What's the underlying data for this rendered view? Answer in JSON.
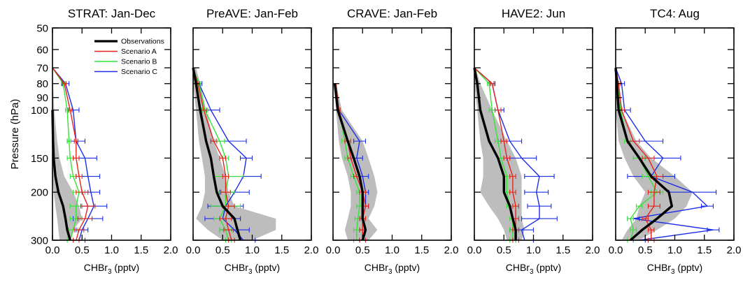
{
  "figure": {
    "ylabel": "Pressure (hPa)",
    "yticks": [
      "50",
      "60",
      "70",
      "80",
      "90",
      "100",
      "150",
      "200",
      "300"
    ],
    "ytick_values": [
      50,
      60,
      70,
      80,
      90,
      100,
      150,
      200,
      300
    ],
    "xticks": [
      "0.0",
      "0.5",
      "1.0",
      "1.5",
      "2.0"
    ],
    "xtick_values": [
      0,
      0.5,
      1.0,
      1.5,
      2.0
    ],
    "xlabel_main": "CHBr",
    "xlabel_sub": "3",
    "xlabel_unit": " (pptv)",
    "legend": [
      {
        "name": "Observations",
        "color": "#000000"
      },
      {
        "name": "Scenario A",
        "color": "#e8231c"
      },
      {
        "name": "Scenario B",
        "color": "#33e433"
      },
      {
        "name": "Scenario C",
        "color": "#1c2ee8"
      }
    ]
  },
  "chart_data": [
    {
      "type": "line",
      "title": "STRAT: Jan-Dec",
      "xlim": [
        0,
        2
      ],
      "ylim": [
        50,
        300
      ],
      "y_scale": "log",
      "y_inverted": true,
      "band": [
        {
          "p": 70,
          "lo": 0.0,
          "hi": 0.0
        },
        {
          "p": 100,
          "lo": 0.0,
          "hi": 0.03
        },
        {
          "p": 130,
          "lo": 0.0,
          "hi": 0.08
        },
        {
          "p": 150,
          "lo": 0.0,
          "hi": 0.12
        },
        {
          "p": 175,
          "lo": 0.0,
          "hi": 0.2
        },
        {
          "p": 200,
          "lo": 0.02,
          "hi": 0.35
        },
        {
          "p": 225,
          "lo": 0.05,
          "hi": 0.45
        },
        {
          "p": 250,
          "lo": 0.08,
          "hi": 0.5
        },
        {
          "p": 275,
          "lo": 0.1,
          "hi": 0.35
        },
        {
          "p": 300,
          "lo": 0.12,
          "hi": 0.3
        }
      ],
      "series": [
        {
          "name": "Observations",
          "p": [
            100,
            130,
            150,
            175,
            200,
            225,
            250,
            275,
            300
          ],
          "x": [
            0.0,
            0.01,
            0.02,
            0.05,
            0.1,
            0.18,
            0.22,
            0.25,
            0.3
          ]
        },
        {
          "name": "Scenario A",
          "p": [
            70,
            80,
            100,
            130,
            150,
            175,
            200,
            225,
            250,
            275,
            300
          ],
          "x": [
            0.0,
            0.2,
            0.3,
            0.4,
            0.4,
            0.45,
            0.5,
            0.6,
            0.55,
            0.45,
            0.4
          ],
          "err": [
            0,
            0.03,
            0.03,
            0.03,
            0.05,
            0.05,
            0.1,
            0.12,
            0.12,
            0.08,
            0.05
          ]
        },
        {
          "name": "Scenario B",
          "p": [
            70,
            80,
            100,
            130,
            150,
            175,
            200,
            225,
            250,
            275,
            300
          ],
          "x": [
            0.0,
            0.18,
            0.25,
            0.28,
            0.3,
            0.35,
            0.45,
            0.4,
            0.4,
            0.35,
            0.3
          ],
          "err": [
            0,
            0.03,
            0.03,
            0.03,
            0.05,
            0.05,
            0.1,
            0.1,
            0.1,
            0.08,
            0.05
          ]
        },
        {
          "name": "Scenario C",
          "p": [
            70,
            80,
            100,
            130,
            150,
            175,
            200,
            225,
            250,
            275,
            300
          ],
          "x": [
            0.0,
            0.22,
            0.35,
            0.4,
            0.55,
            0.6,
            0.65,
            0.7,
            0.6,
            0.5,
            0.45
          ],
          "err": [
            0,
            0.06,
            0.1,
            0.15,
            0.2,
            0.2,
            0.15,
            0.22,
            0.25,
            0.1,
            0.1
          ]
        }
      ]
    },
    {
      "type": "line",
      "title": "PreAVE: Jan-Feb",
      "xlim": [
        0,
        2
      ],
      "ylim": [
        50,
        300
      ],
      "y_scale": "log",
      "y_inverted": true,
      "band": [
        {
          "p": 70,
          "lo": 0.0,
          "hi": 0.05
        },
        {
          "p": 80,
          "lo": 0.0,
          "hi": 0.12
        },
        {
          "p": 100,
          "lo": 0.05,
          "hi": 0.22
        },
        {
          "p": 130,
          "lo": 0.1,
          "hi": 0.35
        },
        {
          "p": 150,
          "lo": 0.15,
          "hi": 0.45
        },
        {
          "p": 175,
          "lo": 0.2,
          "hi": 0.55
        },
        {
          "p": 200,
          "lo": 0.2,
          "hi": 0.6
        },
        {
          "p": 225,
          "lo": 0.15,
          "hi": 0.7
        },
        {
          "p": 250,
          "lo": 0.05,
          "hi": 1.4
        },
        {
          "p": 275,
          "lo": 0.25,
          "hi": 1.4
        },
        {
          "p": 300,
          "lo": 0.5,
          "hi": 1.0
        }
      ],
      "series": [
        {
          "name": "Observations",
          "p": [
            70,
            80,
            100,
            130,
            150,
            175,
            200,
            225,
            250,
            275,
            300
          ],
          "x": [
            0.0,
            0.05,
            0.12,
            0.22,
            0.3,
            0.35,
            0.4,
            0.5,
            0.7,
            0.75,
            0.8
          ]
        },
        {
          "name": "Scenario A",
          "p": [
            70,
            80,
            100,
            130,
            150,
            175,
            200,
            225,
            250,
            275,
            300
          ],
          "x": [
            0.0,
            0.08,
            0.18,
            0.35,
            0.5,
            0.55,
            0.55,
            0.6,
            0.55,
            0.6,
            0.65
          ],
          "err": [
            0,
            0.03,
            0.05,
            0.05,
            0.05,
            0.05,
            0.08,
            0.1,
            0.1,
            0.08,
            0.05
          ]
        },
        {
          "name": "Scenario B",
          "p": [
            70,
            80,
            100,
            130,
            150,
            175,
            200,
            225,
            250,
            275,
            300
          ],
          "x": [
            0.0,
            0.1,
            0.2,
            0.45,
            0.55,
            0.6,
            0.55,
            0.55,
            0.45,
            0.55,
            0.6
          ],
          "err": [
            0,
            0.03,
            0.05,
            0.08,
            0.05,
            0.25,
            0.15,
            0.25,
            0.1,
            0.1,
            0.05
          ]
        },
        {
          "name": "Scenario C",
          "p": [
            70,
            80,
            100,
            130,
            150,
            175,
            200,
            225,
            250,
            275,
            300
          ],
          "x": [
            0.0,
            0.1,
            0.3,
            0.6,
            0.9,
            0.85,
            0.7,
            0.55,
            0.5,
            0.7,
            0.85
          ],
          "err": [
            0,
            0.05,
            0.15,
            0.3,
            0.1,
            0.3,
            0.25,
            0.3,
            0.3,
            0.25,
            0.2
          ]
        }
      ]
    },
    {
      "type": "line",
      "title": "CRAVE: Jan-Feb",
      "xlim": [
        0,
        2
      ],
      "ylim": [
        50,
        300
      ],
      "y_scale": "log",
      "y_inverted": true,
      "band": [
        {
          "p": 80,
          "lo": 0.02,
          "hi": 0.05
        },
        {
          "p": 100,
          "lo": 0.05,
          "hi": 0.15
        },
        {
          "p": 130,
          "lo": 0.1,
          "hi": 0.5
        },
        {
          "p": 150,
          "lo": 0.15,
          "hi": 0.6
        },
        {
          "p": 175,
          "lo": 0.25,
          "hi": 0.7
        },
        {
          "p": 200,
          "lo": 0.3,
          "hi": 0.75
        },
        {
          "p": 225,
          "lo": 0.3,
          "hi": 0.7
        },
        {
          "p": 250,
          "lo": 0.25,
          "hi": 0.6
        },
        {
          "p": 275,
          "lo": 0.2,
          "hi": 0.75
        },
        {
          "p": 300,
          "lo": 0.25,
          "hi": 0.6
        }
      ],
      "series": [
        {
          "name": "Observations",
          "p": [
            80,
            100,
            130,
            150,
            175,
            200,
            225,
            250,
            275,
            300
          ],
          "x": [
            0.03,
            0.08,
            0.25,
            0.35,
            0.45,
            0.5,
            0.5,
            0.5,
            0.55,
            0.5
          ]
        },
        {
          "name": "Scenario A",
          "p": [
            80,
            100,
            130,
            150,
            175,
            200,
            225,
            250,
            275,
            300
          ],
          "x": [
            0.05,
            0.1,
            0.25,
            0.3,
            0.4,
            0.5,
            0.55,
            0.5,
            0.5,
            0.5
          ],
          "err": [
            0,
            0.02,
            0.05,
            0.05,
            0.05,
            0.05,
            0.05,
            0.05,
            0.05,
            0.05
          ]
        },
        {
          "name": "Scenario B",
          "p": [
            80,
            100,
            130,
            150,
            175,
            200,
            225,
            250,
            275,
            300
          ],
          "x": [
            0.05,
            0.1,
            0.2,
            0.25,
            0.35,
            0.45,
            0.45,
            0.42,
            0.4,
            0.4
          ],
          "err": [
            0,
            0.02,
            0.05,
            0.05,
            0.05,
            0.05,
            0.05,
            0.05,
            0.05,
            0.05
          ]
        },
        {
          "name": "Scenario C",
          "p": [
            80,
            100,
            130,
            150,
            175,
            200,
            225,
            250,
            275,
            300
          ],
          "x": [
            0.05,
            0.1,
            0.45,
            0.4,
            0.5,
            0.55,
            0.55,
            0.5,
            0.5,
            0.5
          ],
          "err": [
            0,
            0.02,
            0.1,
            0.1,
            0.1,
            0.05,
            0.05,
            0.05,
            0.05,
            0.05
          ]
        }
      ]
    },
    {
      "type": "line",
      "title": "HAVE2: Jun",
      "xlim": [
        0,
        2
      ],
      "ylim": [
        50,
        300
      ],
      "y_scale": "log",
      "y_inverted": true,
      "band": [
        {
          "p": 70,
          "lo": 0.0,
          "hi": 0.02
        },
        {
          "p": 80,
          "lo": 0.0,
          "hi": 0.1
        },
        {
          "p": 100,
          "lo": 0.05,
          "hi": 0.3
        },
        {
          "p": 130,
          "lo": 0.1,
          "hi": 0.55
        },
        {
          "p": 150,
          "lo": 0.15,
          "hi": 0.7
        },
        {
          "p": 175,
          "lo": 0.15,
          "hi": 0.8
        },
        {
          "p": 200,
          "lo": 0.1,
          "hi": 0.8
        },
        {
          "p": 225,
          "lo": 0.25,
          "hi": 0.8
        },
        {
          "p": 250,
          "lo": 0.4,
          "hi": 0.8
        },
        {
          "p": 275,
          "lo": 0.5,
          "hi": 0.85
        },
        {
          "p": 300,
          "lo": 0.55,
          "hi": 0.8
        }
      ],
      "series": [
        {
          "name": "Observations",
          "p": [
            70,
            80,
            100,
            130,
            150,
            175,
            200,
            225,
            250,
            275,
            300
          ],
          "x": [
            0.0,
            0.05,
            0.1,
            0.25,
            0.4,
            0.5,
            0.5,
            0.6,
            0.65,
            0.7,
            0.7
          ]
        },
        {
          "name": "Scenario A",
          "p": [
            70,
            80,
            100,
            130,
            150,
            175,
            200,
            225,
            250,
            275,
            300
          ],
          "x": [
            0.0,
            0.3,
            0.4,
            0.5,
            0.55,
            0.65,
            0.65,
            0.7,
            0.7,
            0.7,
            0.7
          ],
          "err": [
            0,
            0.03,
            0.05,
            0.05,
            0.05,
            0.05,
            0.05,
            0.05,
            0.05,
            0.05,
            0.05
          ]
        },
        {
          "name": "Scenario B",
          "p": [
            70,
            80,
            100,
            130,
            150,
            175,
            200,
            225,
            250,
            275,
            300
          ],
          "x": [
            0.0,
            0.25,
            0.3,
            0.4,
            0.45,
            0.55,
            0.55,
            0.6,
            0.65,
            0.65,
            0.65
          ],
          "err": [
            0,
            0.03,
            0.05,
            0.05,
            0.05,
            0.05,
            0.05,
            0.05,
            0.05,
            0.05,
            0.05
          ]
        },
        {
          "name": "Scenario C",
          "p": [
            70,
            80,
            100,
            130,
            150,
            175,
            200,
            225,
            250,
            275,
            300
          ],
          "x": [
            0.0,
            0.3,
            0.4,
            0.6,
            0.8,
            1.1,
            1.05,
            1.1,
            1.1,
            0.8,
            0.85
          ],
          "err": [
            0,
            0.05,
            0.1,
            0.2,
            0.25,
            0.25,
            0.2,
            0.2,
            0.3,
            0.2,
            0.15
          ]
        }
      ]
    },
    {
      "type": "line",
      "title": "TC4: Aug",
      "xlim": [
        0,
        2
      ],
      "ylim": [
        50,
        300
      ],
      "y_scale": "log",
      "y_inverted": true,
      "band": [
        {
          "p": 70,
          "lo": 0.0,
          "hi": 0.02
        },
        {
          "p": 80,
          "lo": 0.0,
          "hi": 0.05
        },
        {
          "p": 100,
          "lo": 0.0,
          "hi": 0.1
        },
        {
          "p": 130,
          "lo": 0.05,
          "hi": 0.35
        },
        {
          "p": 150,
          "lo": 0.15,
          "hi": 0.6
        },
        {
          "p": 175,
          "lo": 0.3,
          "hi": 1.0
        },
        {
          "p": 200,
          "lo": 0.5,
          "hi": 1.3
        },
        {
          "p": 225,
          "lo": 0.4,
          "hi": 1.2
        },
        {
          "p": 250,
          "lo": 0.35,
          "hi": 1.0
        },
        {
          "p": 275,
          "lo": 0.2,
          "hi": 0.7
        },
        {
          "p": 300,
          "lo": 0.1,
          "hi": 0.4
        }
      ],
      "series": [
        {
          "name": "Observations",
          "p": [
            70,
            80,
            100,
            130,
            150,
            175,
            200,
            225,
            250,
            275,
            300
          ],
          "x": [
            0.0,
            0.02,
            0.05,
            0.2,
            0.4,
            0.6,
            0.9,
            0.95,
            0.7,
            0.45,
            0.25
          ]
        },
        {
          "name": "Scenario A",
          "p": [
            70,
            80,
            100,
            130,
            150,
            175,
            200,
            225,
            250,
            275,
            300
          ],
          "x": [
            0.0,
            0.05,
            0.1,
            0.3,
            0.55,
            0.7,
            0.65,
            0.65,
            0.5,
            0.6,
            0.6
          ],
          "err": [
            0,
            0.03,
            0.05,
            0.1,
            0.1,
            0.1,
            0.1,
            0.1,
            0.05,
            0.05,
            0.05
          ]
        },
        {
          "name": "Scenario B",
          "p": [
            70,
            80,
            100,
            130,
            150,
            175,
            200,
            225,
            250,
            275,
            300
          ],
          "x": [
            0.0,
            0.03,
            0.08,
            0.2,
            0.4,
            0.55,
            0.7,
            0.4,
            0.25,
            0.3,
            0.25
          ],
          "err": [
            0,
            0.02,
            0.03,
            0.05,
            0.1,
            0.1,
            0.1,
            0.05,
            0.05,
            0.05,
            0.05
          ]
        },
        {
          "name": "Scenario C",
          "p": [
            70,
            80,
            100,
            130,
            150,
            175,
            200,
            225,
            250,
            275,
            300
          ],
          "x": [
            0.0,
            0.1,
            0.15,
            0.5,
            0.8,
            0.6,
            1.3,
            1.55,
            0.3,
            1.65,
            0.4
          ],
          "err": [
            0,
            0.05,
            0.1,
            0.3,
            0.3,
            0.4,
            0.4,
            0.1,
            0.1,
            0.1,
            0.1
          ]
        }
      ]
    }
  ]
}
